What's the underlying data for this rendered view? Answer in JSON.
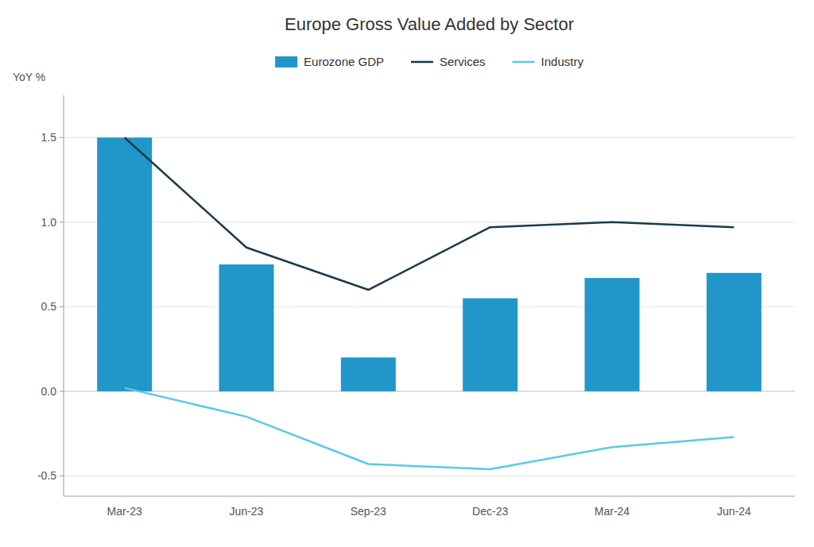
{
  "chart_data": {
    "type": "bar",
    "title": "Europe Gross Value Added by Sector",
    "ylabel": "YoY %",
    "categories": [
      "Mar-23",
      "Jun-23",
      "Sep-23",
      "Dec-23",
      "Mar-24",
      "Jun-24"
    ],
    "series": [
      {
        "name": "Eurozone GDP",
        "type": "bar",
        "color": "#2196C9",
        "values": [
          1.5,
          0.75,
          0.2,
          0.55,
          0.67,
          0.7
        ]
      },
      {
        "name": "Services",
        "type": "line",
        "color": "#1a3a4a",
        "values": [
          1.5,
          0.85,
          0.6,
          0.97,
          1.0,
          0.97
        ]
      },
      {
        "name": "Industry",
        "type": "line",
        "color": "#5bc8e8",
        "values": [
          0.02,
          -0.15,
          -0.43,
          -0.46,
          -0.33,
          -0.27
        ]
      }
    ],
    "ylim": [
      -0.62,
      1.75
    ],
    "yticks": [
      -0.5,
      {
        "value": 0.0,
        "label": "0.0"
      },
      0.5,
      {
        "value": 1.0,
        "label": "1.0"
      },
      1.5
    ],
    "grid": true,
    "legend": "top"
  }
}
